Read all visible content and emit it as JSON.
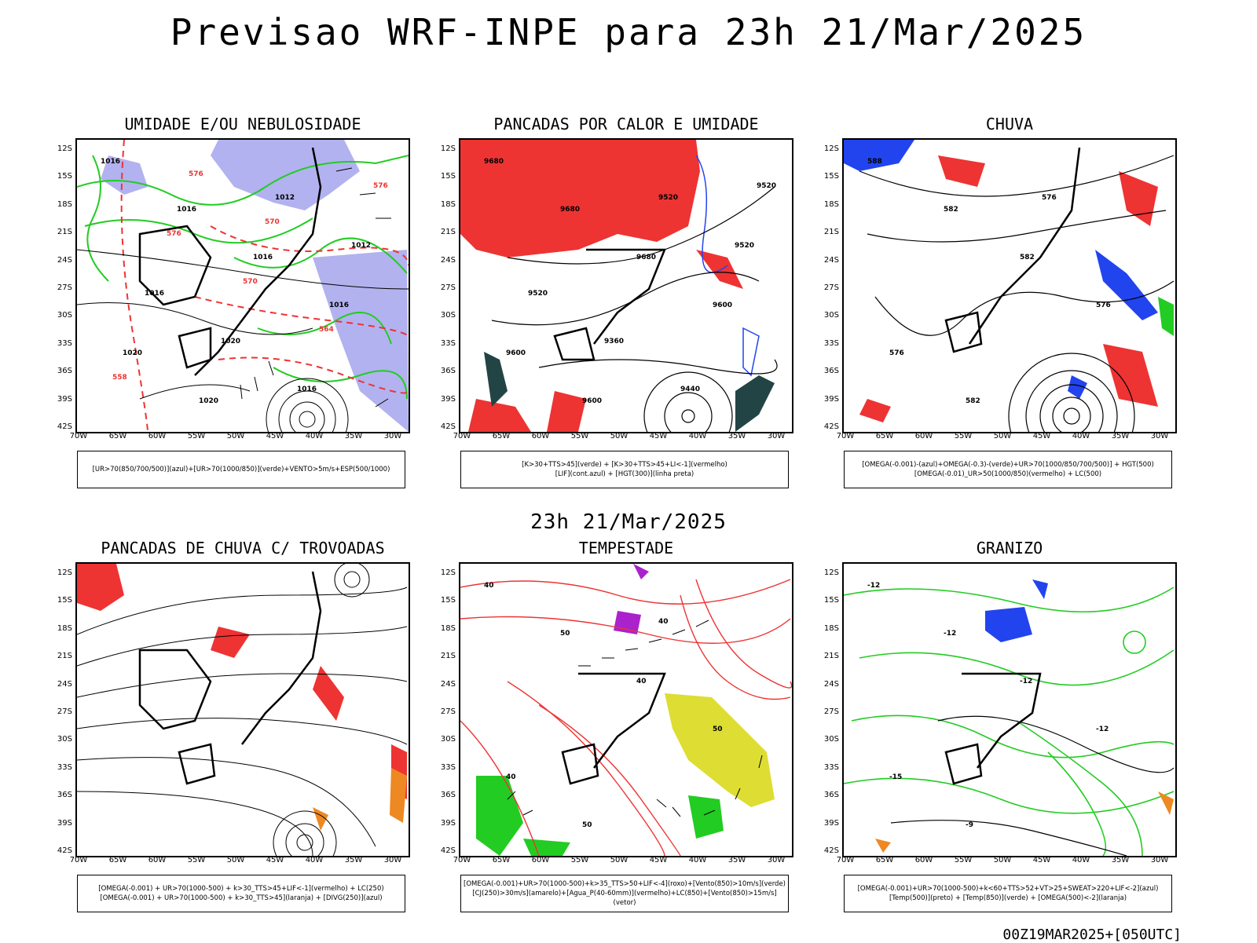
{
  "header": {
    "title": "Previsao WRF-INPE  para 23h 21/Mar/2025"
  },
  "middle": {
    "title": "23h 21/Mar/2025"
  },
  "footer": {
    "stamp": "00Z19MAR2025+[050UTC]"
  },
  "axes": {
    "lat_labels": [
      "12S",
      "15S",
      "18S",
      "21S",
      "24S",
      "27S",
      "30S",
      "33S",
      "36S",
      "39S",
      "42S"
    ],
    "lon_labels": [
      "70W",
      "65W",
      "60W",
      "55W",
      "50W",
      "45W",
      "40W",
      "35W",
      "30W"
    ]
  },
  "colors": {
    "humid_blue": "#aaaaee",
    "green": "#22cc22",
    "red": "#ee3333",
    "dark_teal": "#224444",
    "blue": "#2244ee",
    "orange": "#ee8822",
    "yellow": "#dddd33",
    "purple": "#aa22cc"
  },
  "panels": [
    {
      "title": "UMIDADE E/OU NEBULOSIDADE",
      "legend": [
        "[UR>70(850/700/500)](azul)+[UR>70(1000/850)](verde)+VENTO>5m/s+ESP(500/1000)"
      ],
      "contour_labels": [
        "1016",
        "1016",
        "1016",
        "1016",
        "1020",
        "1020",
        "1012",
        "1012",
        "1016",
        "1020",
        "1016",
        "576",
        "576",
        "570",
        "564",
        "558",
        "576",
        "570"
      ]
    },
    {
      "title": "PANCADAS POR CALOR E UMIDADE",
      "legend": [
        "[K>30+TTS>45](verde) + [K>30+TTS>45+LI<-1](vermelho)",
        "[LIF](cont.azul) + [HGT(300)](linha preta)"
      ],
      "contour_labels": [
        "9680",
        "9680",
        "9680",
        "9600",
        "9600",
        "9600",
        "9520",
        "9520",
        "9520",
        "9360",
        "9440",
        "9520"
      ]
    },
    {
      "title": "CHUVA",
      "legend": [
        "[OMEGA(-0.001)-(azul)+OMEGA(-0.3)-(verde)+UR>70(1000/850/700/500)] + HGT(500)",
        "[OMEGA(-0.01)_UR>50(1000/850)(vermelho) + LC(500)"
      ],
      "contour_labels": [
        "588",
        "582",
        "582",
        "576",
        "576",
        "582",
        "576"
      ]
    },
    {
      "title": "PANCADAS DE CHUVA C/ TROVOADAS",
      "legend": [
        "[OMEGA(-0.001) + UR>70(1000-500) + k>30_TTS>45+LIF<-1](vermelho) + LC(250)",
        "[OMEGA(-0.001) + UR>70(1000-500) + k>30_TTS>45](laranja) + [DIVG(250)](azul)"
      ],
      "contour_labels": []
    },
    {
      "title": "TEMPESTADE",
      "legend": [
        "[OMEGA(-0.001)+UR>70(1000-500)+k>35_TTS>50+LIF<-4](roxo)+[Vento(850)>10m/s](verde)",
        "[CJ(250)>30m/s](amarelo)+[Agua_P(40-60mm)](vermelho)+LC(850)+[Vento(850)>15m/s](vetor)"
      ],
      "contour_labels": [
        "40",
        "50",
        "40",
        "50",
        "40",
        "50",
        "40"
      ]
    },
    {
      "title": "GRANIZO",
      "legend": [
        "[OMEGA(-0.001)+UR>70(1000-500)+k<60+TTS>52+VT>25+SWEAT>220+LIF<-2](azul)",
        "[Temp(500)](preto) + [Temp(850)](verde) + [OMEGA(500)<-2](laranja)"
      ],
      "contour_labels": [
        "-12",
        "-12",
        "-12",
        "-12",
        "-15",
        "-9"
      ]
    }
  ]
}
